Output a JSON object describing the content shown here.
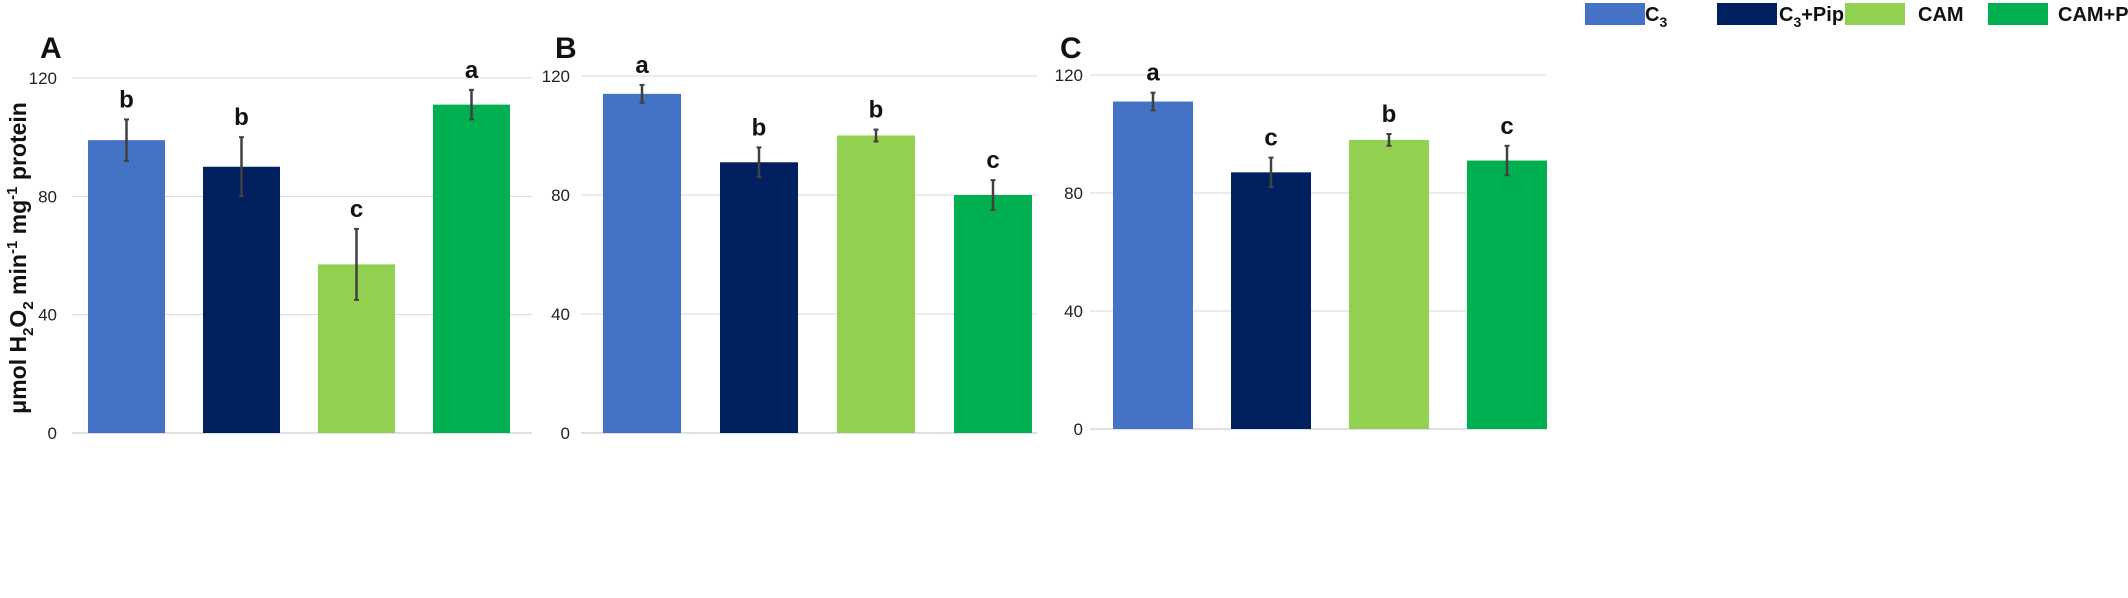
{
  "legend": {
    "items": [
      {
        "label": "C",
        "subscript": "3",
        "suffix": "",
        "color": "#4472C4"
      },
      {
        "label": "C",
        "subscript": "3",
        "suffix": "+Pip",
        "color": "#002060"
      },
      {
        "label": "CAM",
        "subscript": "",
        "suffix": "",
        "color": "#92D050"
      },
      {
        "label": "CAM+Pip",
        "subscript": "",
        "suffix": "",
        "color": "#00B050"
      }
    ]
  },
  "ylabel": {
    "parts": [
      {
        "text": "μmol H",
        "shift": "none"
      },
      {
        "text": "2",
        "shift": "sub"
      },
      {
        "text": "O",
        "shift": "none"
      },
      {
        "text": "2",
        "shift": "sub"
      },
      {
        "text": " min",
        "shift": "none"
      },
      {
        "text": "-1",
        "shift": "super"
      },
      {
        "text": " mg",
        "shift": "none"
      },
      {
        "text": "-1",
        "shift": "super"
      },
      {
        "text": " protein",
        "shift": "none"
      }
    ]
  },
  "chart_data": [
    {
      "type": "bar",
      "panel": "A",
      "categories": [
        "C3",
        "C3+Pip",
        "CAM",
        "CAM+Pip"
      ],
      "values": [
        99,
        90,
        57,
        111
      ],
      "errors": [
        7,
        10,
        12,
        5
      ],
      "letters": [
        "b",
        "b",
        "c",
        "a"
      ],
      "ylim": [
        0,
        120
      ],
      "yticks": [
        0,
        40,
        80,
        120
      ],
      "grid": true
    },
    {
      "type": "bar",
      "panel": "B",
      "categories": [
        "C3",
        "C3+Pip",
        "CAM",
        "CAM+Pip"
      ],
      "values": [
        114,
        91,
        100,
        80
      ],
      "errors": [
        3,
        5,
        2,
        5
      ],
      "letters": [
        "a",
        "b",
        "b",
        "c"
      ],
      "ylim": [
        0,
        120
      ],
      "yticks": [
        0,
        40,
        80,
        120
      ],
      "grid": true
    },
    {
      "type": "bar",
      "panel": "C",
      "categories": [
        "C3",
        "C3+Pip",
        "CAM",
        "CAM+Pip"
      ],
      "values": [
        111,
        87,
        98,
        91
      ],
      "errors": [
        3,
        5,
        2,
        5
      ],
      "letters": [
        "a",
        "c",
        "b",
        "c"
      ],
      "ylim": [
        0,
        120
      ],
      "yticks": [
        0,
        40,
        80,
        120
      ],
      "grid": true
    }
  ]
}
